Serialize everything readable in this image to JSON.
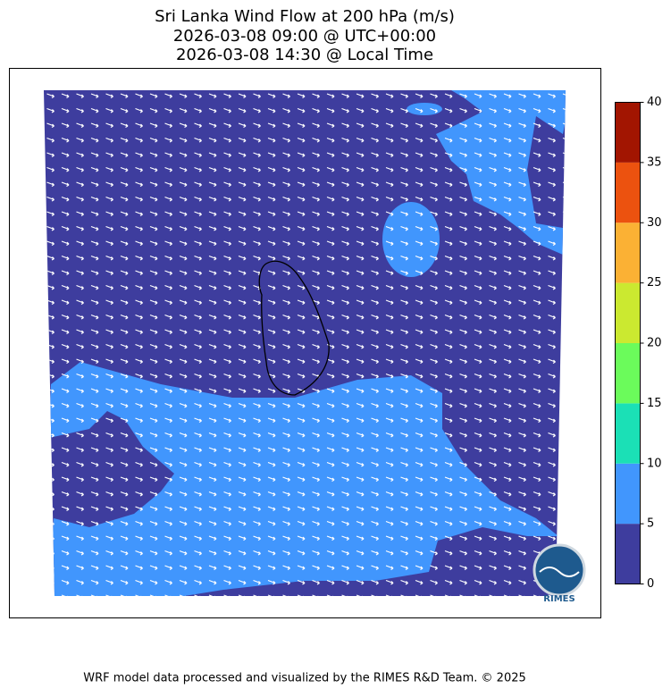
{
  "title": [
    "Sri Lanka Wind Flow at 200 hPa (m/s)",
    "2026-03-08 09:00 @ UTC+00:00",
    "2026-03-08 14:30 @ Local Time"
  ],
  "colorbar": {
    "levels": [
      0,
      5,
      10,
      15,
      20,
      25,
      30,
      35,
      40
    ],
    "colors": [
      "#3e3d9e",
      "#4196fd",
      "#1be0b6",
      "#6bfb5b",
      "#cbe930",
      "#fbb134",
      "#ec520f",
      "#a21501"
    ]
  },
  "logo_text": "RIMES",
  "footer": "WRF model data processed and visualized by the RIMES R&D Team. © 2025"
}
